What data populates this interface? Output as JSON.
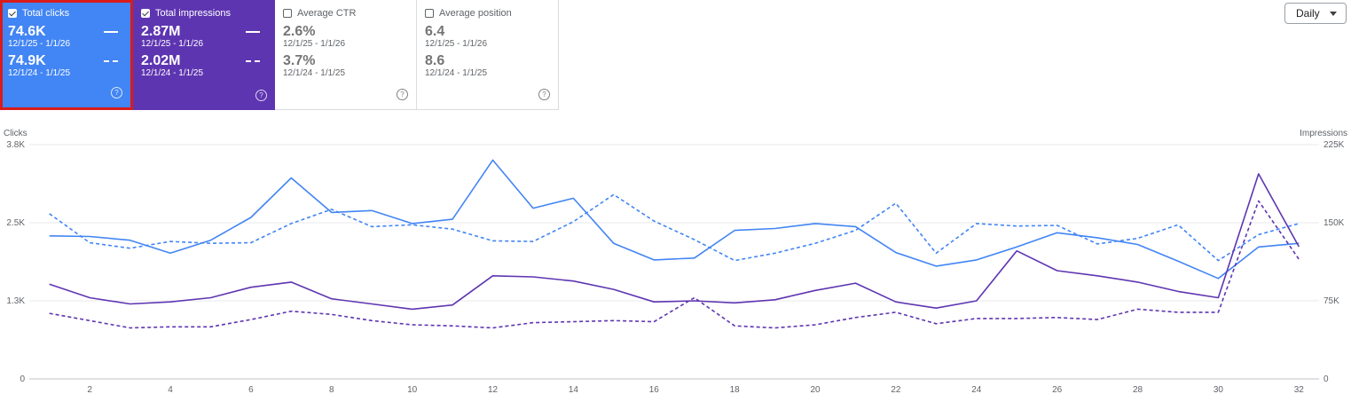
{
  "cards": {
    "clicks": {
      "label": "Total clicks",
      "current_value": "74.6K",
      "current_range": "12/1/25 - 1/1/26",
      "previous_value": "74.9K",
      "previous_range": "12/1/24 - 1/1/25",
      "color": "#4285f4"
    },
    "impressions": {
      "label": "Total impressions",
      "current_value": "2.87M",
      "current_range": "12/1/25 - 1/1/26",
      "previous_value": "2.02M",
      "previous_range": "12/1/24 - 1/1/25",
      "color": "#5e35b1"
    },
    "ctr": {
      "label": "Average CTR",
      "current_value": "2.6%",
      "current_range": "12/1/25 - 1/1/26",
      "previous_value": "3.7%",
      "previous_range": "12/1/24 - 1/1/25"
    },
    "position": {
      "label": "Average position",
      "current_value": "6.4",
      "current_range": "12/1/25 - 1/1/26",
      "previous_value": "8.6",
      "previous_range": "12/1/24 - 1/1/25"
    },
    "help_glyph": "?"
  },
  "granularity": {
    "label": "Daily"
  },
  "chart_data": {
    "type": "line",
    "left_axis": {
      "label": "Clicks",
      "ticks": [
        "0",
        "1.3K",
        "2.5K",
        "3.8K"
      ],
      "max": 3800
    },
    "right_axis": {
      "label": "Impressions",
      "ticks": [
        "0",
        "75K",
        "150K",
        "225K"
      ],
      "max": 225000
    },
    "x_ticks": [
      "2",
      "4",
      "6",
      "8",
      "10",
      "12",
      "14",
      "16",
      "18",
      "20",
      "22",
      "24",
      "26",
      "28",
      "30",
      "32"
    ],
    "x": [
      1,
      2,
      3,
      4,
      5,
      6,
      7,
      8,
      9,
      10,
      11,
      12,
      13,
      14,
      15,
      16,
      17,
      18,
      19,
      20,
      21,
      22,
      23,
      24,
      25,
      26,
      27,
      28,
      29,
      30,
      31,
      32
    ],
    "series": [
      {
        "axis": "left",
        "style": "solid",
        "color": "#4285f4",
        "values": [
          2320,
          2310,
          2250,
          2040,
          2250,
          2620,
          3260,
          2700,
          2730,
          2520,
          2590,
          3550,
          2770,
          2930,
          2200,
          1930,
          1960,
          2410,
          2440,
          2520,
          2470,
          2050,
          1830,
          1930,
          2140,
          2370,
          2290,
          2180,
          1910,
          1630,
          2140,
          2200
        ]
      },
      {
        "axis": "left",
        "style": "dashed",
        "color": "#4285f4",
        "values": [
          2680,
          2210,
          2120,
          2230,
          2200,
          2210,
          2520,
          2750,
          2470,
          2500,
          2430,
          2240,
          2230,
          2550,
          2990,
          2560,
          2260,
          1920,
          2040,
          2200,
          2410,
          2850,
          2040,
          2520,
          2480,
          2490,
          2190,
          2280,
          2500,
          1920,
          2340,
          2520
        ]
      },
      {
        "axis": "right",
        "style": "solid",
        "color": "#5e35b1",
        "values": [
          91000,
          78000,
          72000,
          74000,
          78000,
          88000,
          93000,
          77000,
          72000,
          67000,
          71000,
          99000,
          98000,
          94000,
          86000,
          74000,
          75000,
          73000,
          76000,
          85000,
          92000,
          74000,
          68000,
          75000,
          123000,
          104000,
          99000,
          93000,
          84000,
          78000,
          197000,
          127000
        ]
      },
      {
        "axis": "right",
        "style": "dashed",
        "color": "#5e35b1",
        "values": [
          63000,
          56000,
          49000,
          50000,
          50000,
          57000,
          65000,
          62000,
          56000,
          52000,
          51000,
          49000,
          54000,
          55000,
          56000,
          55000,
          78000,
          51000,
          49000,
          52000,
          59000,
          64000,
          53000,
          58000,
          58000,
          59000,
          57000,
          67000,
          64000,
          64000,
          171000,
          115000
        ]
      }
    ]
  }
}
